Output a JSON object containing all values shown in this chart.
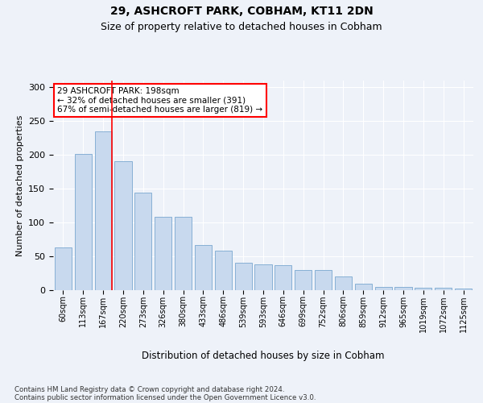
{
  "title1": "29, ASHCROFT PARK, COBHAM, KT11 2DN",
  "title2": "Size of property relative to detached houses in Cobham",
  "xlabel": "Distribution of detached houses by size in Cobham",
  "ylabel": "Number of detached properties",
  "categories": [
    "60sqm",
    "113sqm",
    "167sqm",
    "220sqm",
    "273sqm",
    "326sqm",
    "380sqm",
    "433sqm",
    "486sqm",
    "539sqm",
    "593sqm",
    "646sqm",
    "699sqm",
    "752sqm",
    "806sqm",
    "859sqm",
    "912sqm",
    "965sqm",
    "1019sqm",
    "1072sqm",
    "1125sqm"
  ],
  "values": [
    63,
    202,
    235,
    191,
    144,
    108,
    108,
    67,
    59,
    40,
    38,
    37,
    30,
    30,
    20,
    9,
    5,
    5,
    4,
    3,
    2
  ],
  "bar_color": "#c8d9ee",
  "bar_edge_color": "#7aa8d0",
  "annotation_box_text": "29 ASHCROFT PARK: 198sqm\n← 32% of detached houses are smaller (391)\n67% of semi-detached houses are larger (819) →",
  "footer1": "Contains HM Land Registry data © Crown copyright and database right 2024.",
  "footer2": "Contains public sector information licensed under the Open Government Licence v3.0.",
  "ylim": [
    0,
    310
  ],
  "bg_color": "#eef2f9",
  "plot_bg_color": "#eef2f9"
}
